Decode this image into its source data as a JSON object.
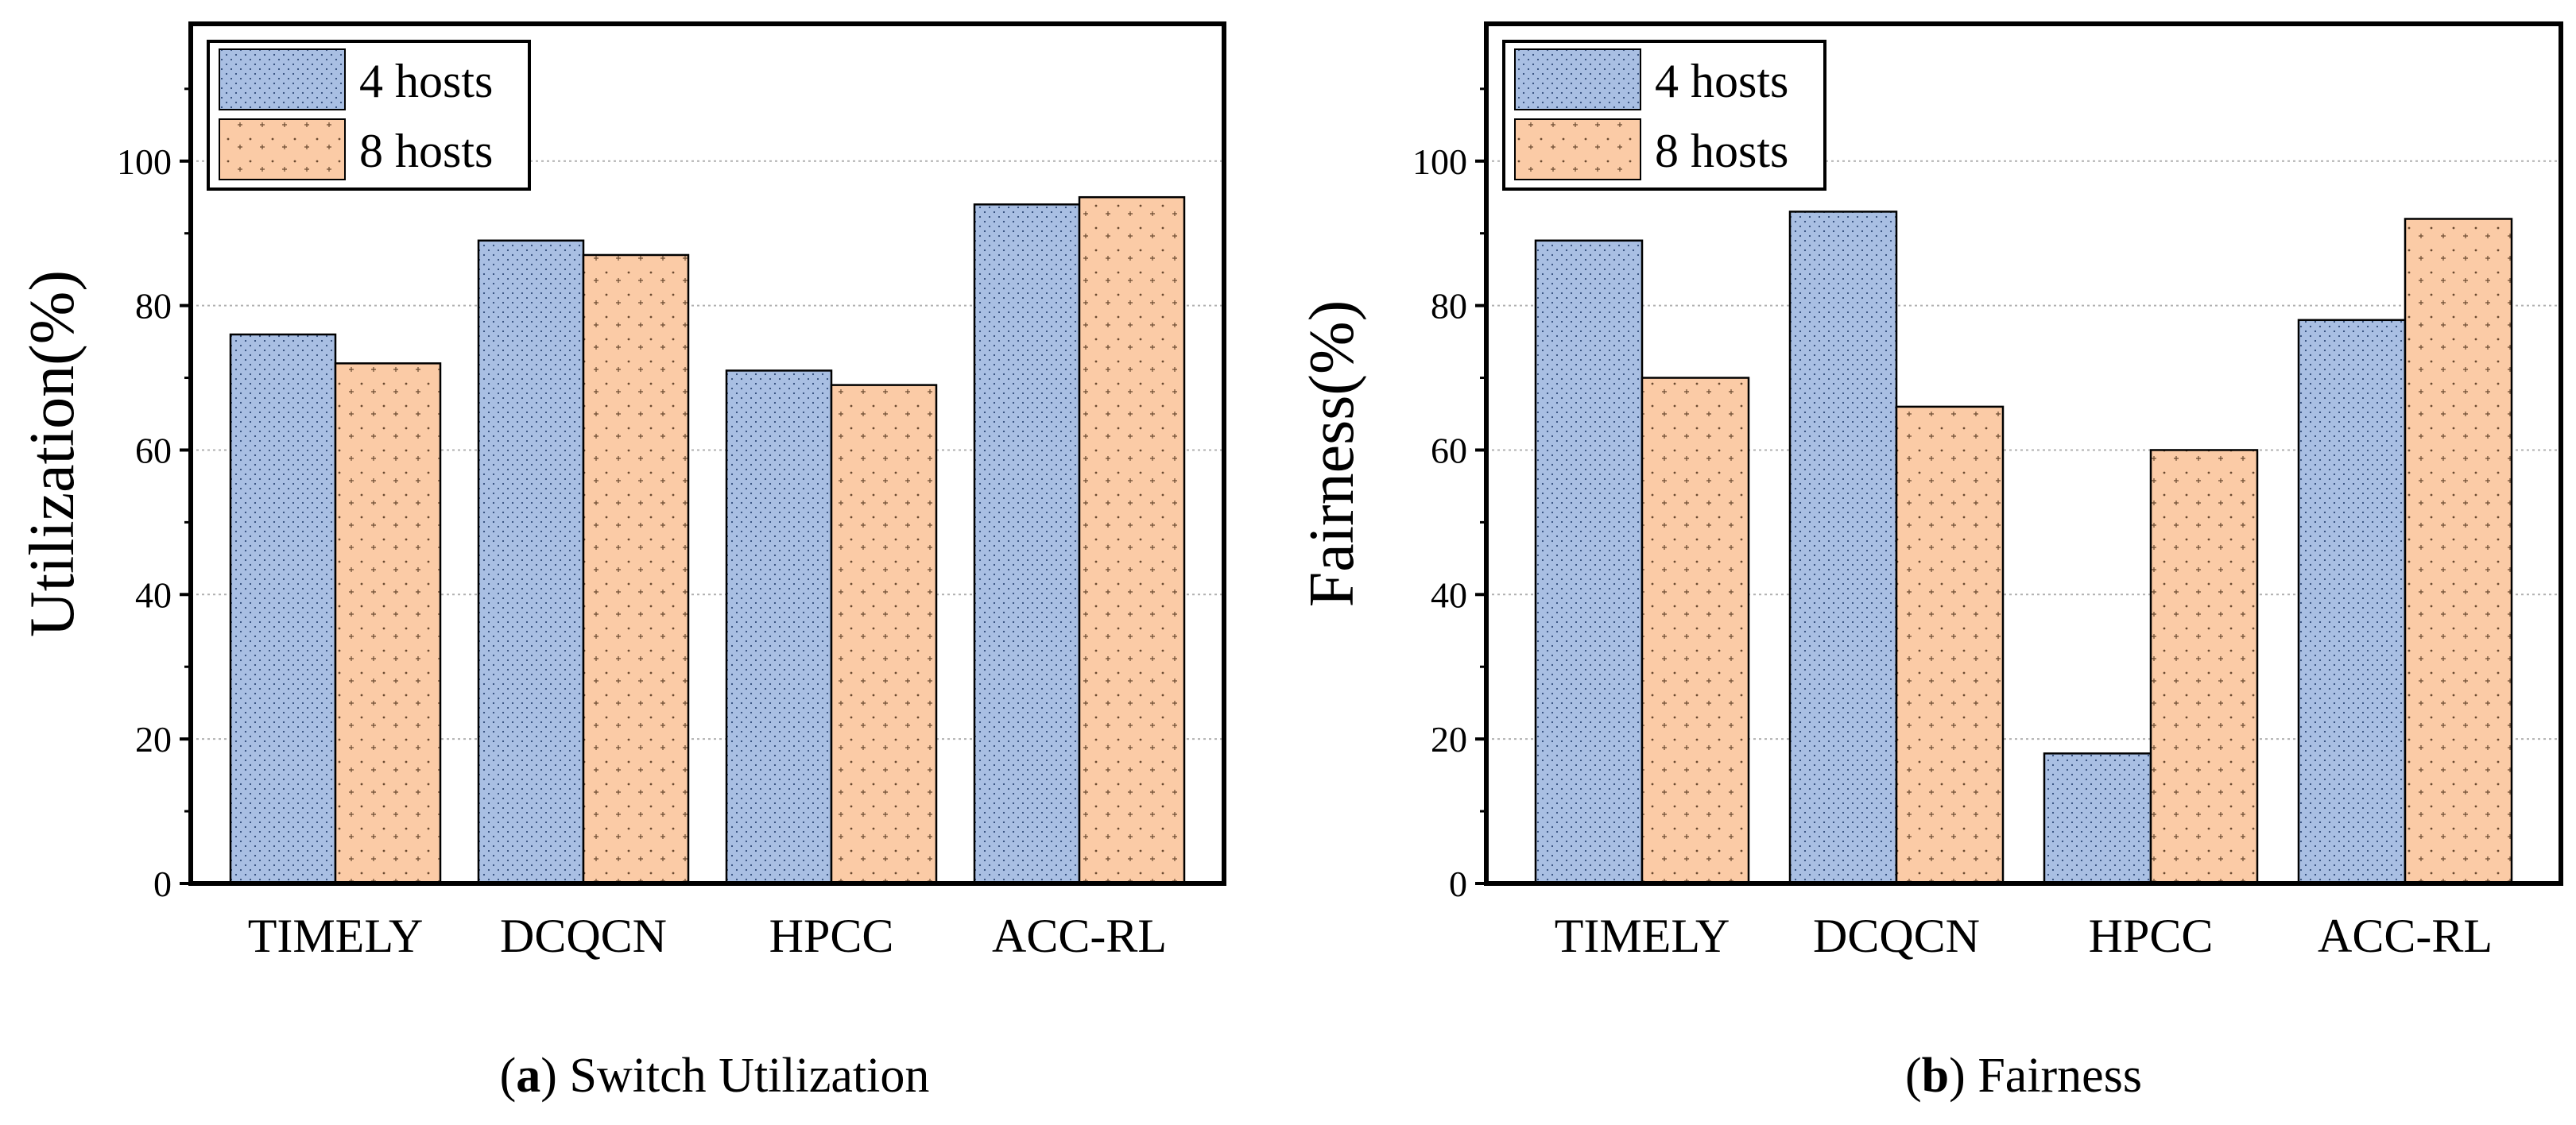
{
  "colors": {
    "series_4_hosts": "#a9bfe3",
    "series_8_hosts": "#fbcba6",
    "grid": "#b0b0b0",
    "frame": "#000000"
  },
  "chart_data": [
    {
      "type": "bar",
      "caption_letter": "a",
      "caption_text": "Switch Utilization",
      "ylabel": "Utilization(%)",
      "xlabel": "",
      "categories": [
        "TIMELY",
        "DCQCN",
        "HPCC",
        "ACC-RL"
      ],
      "series": [
        {
          "name": "4 hosts",
          "values": [
            76,
            89,
            71,
            94
          ]
        },
        {
          "name": "8 hosts",
          "values": [
            72,
            87,
            69,
            95
          ]
        }
      ],
      "ylim": [
        0,
        119
      ],
      "yticks": [
        0,
        20,
        40,
        60,
        80,
        100
      ],
      "grid": "horizontal dotted",
      "legend": "top-left"
    },
    {
      "type": "bar",
      "caption_letter": "b",
      "caption_text": "Fairness",
      "ylabel": "Fairness(%)",
      "xlabel": "",
      "categories": [
        "TIMELY",
        "DCQCN",
        "HPCC",
        "ACC-RL"
      ],
      "series": [
        {
          "name": "4 hosts",
          "values": [
            89,
            93,
            18,
            78
          ]
        },
        {
          "name": "8 hosts",
          "values": [
            70,
            66,
            60,
            92
          ]
        }
      ],
      "ylim": [
        0,
        119
      ],
      "yticks": [
        0,
        20,
        40,
        60,
        80,
        100
      ],
      "grid": "horizontal dotted",
      "legend": "top-left"
    }
  ]
}
